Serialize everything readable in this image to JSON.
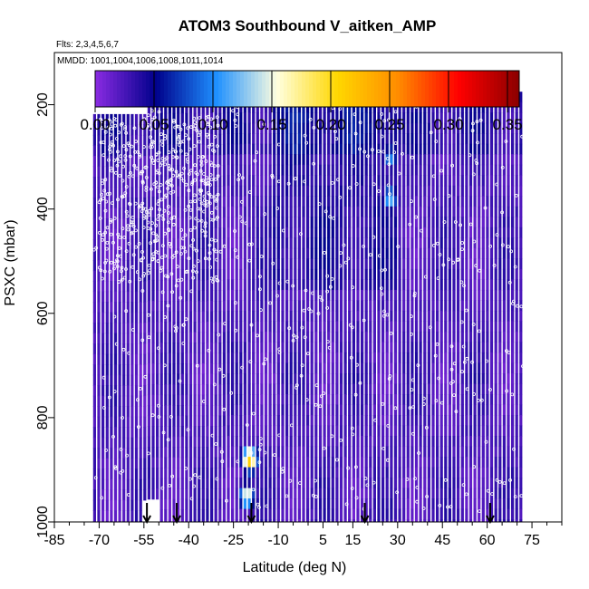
{
  "chart_data": {
    "type": "heatmap",
    "title": "ATOM3 Southbound V_aitken_AMP",
    "subtitle_flights": "Flts: 2,3,4,5,6,7",
    "subtitle_dates": "MMDD: 1001,1004,1006,1008,1011,1014",
    "xlabel": "Latitude (deg N)",
    "ylabel": "PSXC (mbar)",
    "xlim": [
      -85,
      85
    ],
    "ylim": [
      1000,
      100
    ],
    "x_ticks": [
      -85,
      -70,
      -55,
      -40,
      -25,
      -10,
      5,
      15,
      30,
      45,
      60,
      75
    ],
    "x_tick_labels": [
      "-85",
      "-70",
      "-55",
      "-40",
      "-25",
      "-10",
      "5",
      "15",
      "30",
      "45",
      "60",
      "75"
    ],
    "y_ticks": [
      200,
      400,
      600,
      800,
      1000
    ],
    "y_tick_labels": [
      "200",
      "400",
      "600",
      "800",
      "1000"
    ],
    "colorbar": {
      "range": [
        0,
        0.36
      ],
      "ticks": [
        0,
        0.05,
        0.1,
        0.15,
        0.2,
        0.25,
        0.3,
        0.35
      ],
      "tick_labels": [
        "0.00",
        "0.05",
        "0.10",
        "0.15",
        "0.20",
        "0.25",
        "0.30",
        "0.35"
      ],
      "colors": [
        "#8a2be2",
        "#00008b",
        "#1e90ff",
        "#ffffe0",
        "#ffd700",
        "#ff8c00",
        "#ff0000",
        "#8b0000"
      ]
    },
    "arrows_lat": [
      -54,
      -44,
      -19,
      19,
      61
    ],
    "hotspots": [
      {
        "lat": -20,
        "p": 880,
        "value": 0.22
      },
      {
        "lat": -21,
        "p": 950,
        "value": 0.16
      },
      {
        "lat": 27,
        "p": 380,
        "value": 0.12
      },
      {
        "lat": 27,
        "p": 300,
        "value": 0.1
      }
    ]
  }
}
